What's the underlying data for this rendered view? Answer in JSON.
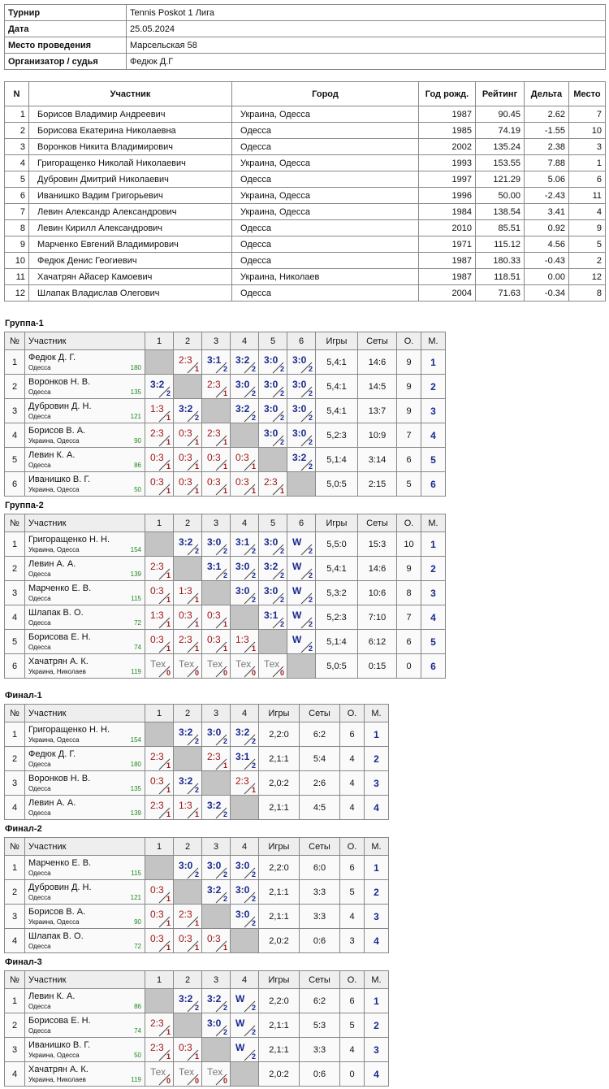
{
  "info": {
    "rows": [
      [
        "Турнир",
        "Tennis Poskot 1 Лига"
      ],
      [
        "Дата",
        "25.05.2024"
      ],
      [
        "Место проведения",
        "Марсельская 58"
      ],
      [
        "Организатор / судья",
        "Федюк Д.Г"
      ]
    ]
  },
  "participants": {
    "headers": [
      "N",
      "Участник",
      "Город",
      "Год рожд.",
      "Рейтинг",
      "Дельта",
      "Место"
    ],
    "rows": [
      [
        "1",
        "Борисов Владимир Андреевич",
        "Украина, Одесса",
        "1987",
        "90.45",
        "2.62",
        "7"
      ],
      [
        "2",
        "Борисова Екатерина Николаевна",
        "Одесса",
        "1985",
        "74.19",
        "-1.55",
        "10"
      ],
      [
        "3",
        "Воронков Никита Владимирович",
        "Одесса",
        "2002",
        "135.24",
        "2.38",
        "3"
      ],
      [
        "4",
        "Григоращенко Николай Николаевич",
        "Украина, Одесса",
        "1993",
        "153.55",
        "7.88",
        "1"
      ],
      [
        "5",
        "Дубровин Дмитрий Николаевич",
        "Одесса",
        "1997",
        "121.29",
        "5.06",
        "6"
      ],
      [
        "6",
        "Иванишко Вадим Григорьевич",
        "Украина, Одесса",
        "1996",
        "50.00",
        "-2.43",
        "11"
      ],
      [
        "7",
        "Левин Александр Александрович",
        "Украина, Одесса",
        "1984",
        "138.54",
        "3.41",
        "4"
      ],
      [
        "8",
        "Левин Кирилл Александрович",
        "Одесса",
        "2010",
        "85.51",
        "0.92",
        "9"
      ],
      [
        "9",
        "Марченко Евгений Владимирович",
        "Одесса",
        "1971",
        "115.12",
        "4.56",
        "5"
      ],
      [
        "10",
        "Федюк Денис Геогиевич",
        "Одесса",
        "1987",
        "180.33",
        "-0.43",
        "2"
      ],
      [
        "11",
        "Хачатрян Айасер Камоевич",
        "Украина, Николаев",
        "1987",
        "118.51",
        "0.00",
        "12"
      ],
      [
        "12",
        "Шлапак Владислав Олегович",
        "Одесса",
        "2004",
        "71.63",
        "-0.34",
        "8"
      ]
    ]
  },
  "groups": [
    {
      "title": "Группа-1",
      "headers": [
        "№",
        "Участник",
        "1",
        "2",
        "3",
        "4",
        "5",
        "6",
        "Игры",
        "Сеты",
        "О.",
        "М."
      ],
      "rows": [
        {
          "n": "1",
          "name": "Федюк Д. Г.",
          "city": "Одесса",
          "rating": "180",
          "games": [
            null,
            {
              "score": "2:3",
              "pts": "1"
            },
            {
              "score": "3:1",
              "pts": "2"
            },
            {
              "score": "3:2",
              "pts": "2"
            },
            {
              "score": "3:0",
              "pts": "2"
            },
            {
              "score": "3:0",
              "pts": "2"
            }
          ],
          "games_total": "5,4:1",
          "sets": "14:6",
          "points": "9",
          "place": "1"
        },
        {
          "n": "2",
          "name": "Воронков Н. В.",
          "city": "Одесса",
          "rating": "135",
          "games": [
            {
              "score": "3:2",
              "pts": "2"
            },
            null,
            {
              "score": "2:3",
              "pts": "1"
            },
            {
              "score": "3:0",
              "pts": "2"
            },
            {
              "score": "3:0",
              "pts": "2"
            },
            {
              "score": "3:0",
              "pts": "2"
            }
          ],
          "games_total": "5,4:1",
          "sets": "14:5",
          "points": "9",
          "place": "2"
        },
        {
          "n": "3",
          "name": "Дубровин Д. Н.",
          "city": "Одесса",
          "rating": "121",
          "games": [
            {
              "score": "1:3",
              "pts": "1"
            },
            {
              "score": "3:2",
              "pts": "2"
            },
            null,
            {
              "score": "3:2",
              "pts": "2"
            },
            {
              "score": "3:0",
              "pts": "2"
            },
            {
              "score": "3:0",
              "pts": "2"
            }
          ],
          "games_total": "5,4:1",
          "sets": "13:7",
          "points": "9",
          "place": "3"
        },
        {
          "n": "4",
          "name": "Борисов В. А.",
          "city": "Украина, Одесса",
          "rating": "90",
          "games": [
            {
              "score": "2:3",
              "pts": "1"
            },
            {
              "score": "0:3",
              "pts": "1"
            },
            {
              "score": "2:3",
              "pts": "1"
            },
            null,
            {
              "score": "3:0",
              "pts": "2"
            },
            {
              "score": "3:0",
              "pts": "2"
            }
          ],
          "games_total": "5,2:3",
          "sets": "10:9",
          "points": "7",
          "place": "4"
        },
        {
          "n": "5",
          "name": "Левин К. А.",
          "city": "Одесса",
          "rating": "86",
          "games": [
            {
              "score": "0:3",
              "pts": "1"
            },
            {
              "score": "0:3",
              "pts": "1"
            },
            {
              "score": "0:3",
              "pts": "1"
            },
            {
              "score": "0:3",
              "pts": "1"
            },
            null,
            {
              "score": "3:2",
              "pts": "2"
            }
          ],
          "games_total": "5,1:4",
          "sets": "3:14",
          "points": "6",
          "place": "5"
        },
        {
          "n": "6",
          "name": "Иванишко В. Г.",
          "city": "Украина, Одесса",
          "rating": "50",
          "games": [
            {
              "score": "0:3",
              "pts": "1"
            },
            {
              "score": "0:3",
              "pts": "1"
            },
            {
              "score": "0:3",
              "pts": "1"
            },
            {
              "score": "0:3",
              "pts": "1"
            },
            {
              "score": "2:3",
              "pts": "1"
            },
            null
          ],
          "games_total": "5,0:5",
          "sets": "2:15",
          "points": "5",
          "place": "6"
        }
      ]
    },
    {
      "title": "Группа-2",
      "headers": [
        "№",
        "Участник",
        "1",
        "2",
        "3",
        "4",
        "5",
        "6",
        "Игры",
        "Сеты",
        "О.",
        "М."
      ],
      "rows": [
        {
          "n": "1",
          "name": "Григоращенко Н. Н.",
          "city": "Украина, Одесса",
          "rating": "154",
          "games": [
            null,
            {
              "score": "3:2",
              "pts": "2"
            },
            {
              "score": "3:0",
              "pts": "2"
            },
            {
              "score": "3:1",
              "pts": "2"
            },
            {
              "score": "3:0",
              "pts": "2"
            },
            {
              "score": "W",
              "pts": "2"
            }
          ],
          "games_total": "5,5:0",
          "sets": "15:3",
          "points": "10",
          "place": "1"
        },
        {
          "n": "2",
          "name": "Левин А. А.",
          "city": "Одесса",
          "rating": "139",
          "games": [
            {
              "score": "2:3",
              "pts": "1"
            },
            null,
            {
              "score": "3:1",
              "pts": "2"
            },
            {
              "score": "3:0",
              "pts": "2"
            },
            {
              "score": "3:2",
              "pts": "2"
            },
            {
              "score": "W",
              "pts": "2"
            }
          ],
          "games_total": "5,4:1",
          "sets": "14:6",
          "points": "9",
          "place": "2"
        },
        {
          "n": "3",
          "name": "Марченко Е. В.",
          "city": "Одесса",
          "rating": "115",
          "games": [
            {
              "score": "0:3",
              "pts": "1"
            },
            {
              "score": "1:3",
              "pts": "1"
            },
            null,
            {
              "score": "3:0",
              "pts": "2"
            },
            {
              "score": "3:0",
              "pts": "2"
            },
            {
              "score": "W",
              "pts": "2"
            }
          ],
          "games_total": "5,3:2",
          "sets": "10:6",
          "points": "8",
          "place": "3"
        },
        {
          "n": "4",
          "name": "Шлапак В. О.",
          "city": "Одесса",
          "rating": "72",
          "games": [
            {
              "score": "1:3",
              "pts": "1"
            },
            {
              "score": "0:3",
              "pts": "1"
            },
            {
              "score": "0:3",
              "pts": "1"
            },
            null,
            {
              "score": "3:1",
              "pts": "2"
            },
            {
              "score": "W",
              "pts": "2"
            }
          ],
          "games_total": "5,2:3",
          "sets": "7:10",
          "points": "7",
          "place": "4"
        },
        {
          "n": "5",
          "name": "Борисова Е. Н.",
          "city": "Одесса",
          "rating": "74",
          "games": [
            {
              "score": "0:3",
              "pts": "1"
            },
            {
              "score": "2:3",
              "pts": "1"
            },
            {
              "score": "0:3",
              "pts": "1"
            },
            {
              "score": "1:3",
              "pts": "1"
            },
            null,
            {
              "score": "W",
              "pts": "2"
            }
          ],
          "games_total": "5,1:4",
          "sets": "6:12",
          "points": "6",
          "place": "5"
        },
        {
          "n": "6",
          "name": "Хачатрян А. К.",
          "city": "Украина, Николаев",
          "rating": "119",
          "games": [
            {
              "score": "Тех",
              "pts": "0"
            },
            {
              "score": "Тех",
              "pts": "0"
            },
            {
              "score": "Тех",
              "pts": "0"
            },
            {
              "score": "Тех",
              "pts": "0"
            },
            {
              "score": "Тех",
              "pts": "0"
            },
            null
          ],
          "games_total": "5,0:5",
          "sets": "0:15",
          "points": "0",
          "place": "6"
        }
      ]
    },
    {
      "title": "Финал-1",
      "headers": [
        "№",
        "Участник",
        "1",
        "2",
        "3",
        "4",
        "Игры",
        "Сеты",
        "О.",
        "М."
      ],
      "rows": [
        {
          "n": "1",
          "name": "Григоращенко Н. Н.",
          "city": "Украина, Одесса",
          "rating": "154",
          "games": [
            null,
            {
              "score": "3:2",
              "pts": "2"
            },
            {
              "score": "3:0",
              "pts": "2"
            },
            {
              "score": "3:2",
              "pts": "2"
            }
          ],
          "games_total": "2,2:0",
          "sets": "6:2",
          "points": "6",
          "place": "1"
        },
        {
          "n": "2",
          "name": "Федюк Д. Г.",
          "city": "Одесса",
          "rating": "180",
          "games": [
            {
              "score": "2:3",
              "pts": "1"
            },
            null,
            {
              "score": "2:3",
              "pts": "1"
            },
            {
              "score": "3:1",
              "pts": "2"
            }
          ],
          "games_total": "2,1:1",
          "sets": "5:4",
          "points": "4",
          "place": "2"
        },
        {
          "n": "3",
          "name": "Воронков Н. В.",
          "city": "Одесса",
          "rating": "135",
          "games": [
            {
              "score": "0:3",
              "pts": "1"
            },
            {
              "score": "3:2",
              "pts": "2"
            },
            null,
            {
              "score": "2:3",
              "pts": "1"
            }
          ],
          "games_total": "2,0:2",
          "sets": "2:6",
          "points": "4",
          "place": "3"
        },
        {
          "n": "4",
          "name": "Левин А. А.",
          "city": "Одесса",
          "rating": "139",
          "games": [
            {
              "score": "2:3",
              "pts": "1"
            },
            {
              "score": "1:3",
              "pts": "1"
            },
            {
              "score": "3:2",
              "pts": "2"
            },
            null
          ],
          "games_total": "2,1:1",
          "sets": "4:5",
          "points": "4",
          "place": "4"
        }
      ]
    },
    {
      "title": "Финал-2",
      "headers": [
        "№",
        "Участник",
        "1",
        "2",
        "3",
        "4",
        "Игры",
        "Сеты",
        "О.",
        "М."
      ],
      "rows": [
        {
          "n": "1",
          "name": "Марченко Е. В.",
          "city": "Одесса",
          "rating": "115",
          "games": [
            null,
            {
              "score": "3:0",
              "pts": "2"
            },
            {
              "score": "3:0",
              "pts": "2"
            },
            {
              "score": "3:0",
              "pts": "2"
            }
          ],
          "games_total": "2,2:0",
          "sets": "6:0",
          "points": "6",
          "place": "1"
        },
        {
          "n": "2",
          "name": "Дубровин Д. Н.",
          "city": "Одесса",
          "rating": "121",
          "games": [
            {
              "score": "0:3",
              "pts": "1"
            },
            null,
            {
              "score": "3:2",
              "pts": "2"
            },
            {
              "score": "3:0",
              "pts": "2"
            }
          ],
          "games_total": "2,1:1",
          "sets": "3:3",
          "points": "5",
          "place": "2"
        },
        {
          "n": "3",
          "name": "Борисов В. А.",
          "city": "Украина, Одесса",
          "rating": "90",
          "games": [
            {
              "score": "0:3",
              "pts": "1"
            },
            {
              "score": "2:3",
              "pts": "1"
            },
            null,
            {
              "score": "3:0",
              "pts": "2"
            }
          ],
          "games_total": "2,1:1",
          "sets": "3:3",
          "points": "4",
          "place": "3"
        },
        {
          "n": "4",
          "name": "Шлапак В. О.",
          "city": "Одесса",
          "rating": "72",
          "games": [
            {
              "score": "0:3",
              "pts": "1"
            },
            {
              "score": "0:3",
              "pts": "1"
            },
            {
              "score": "0:3",
              "pts": "1"
            },
            null
          ],
          "games_total": "2,0:2",
          "sets": "0:6",
          "points": "3",
          "place": "4"
        }
      ]
    },
    {
      "title": "Финал-3",
      "headers": [
        "№",
        "Участник",
        "1",
        "2",
        "3",
        "4",
        "Игры",
        "Сеты",
        "О.",
        "М."
      ],
      "rows": [
        {
          "n": "1",
          "name": "Левин К. А.",
          "city": "Одесса",
          "rating": "86",
          "games": [
            null,
            {
              "score": "3:2",
              "pts": "2"
            },
            {
              "score": "3:2",
              "pts": "2"
            },
            {
              "score": "W",
              "pts": "2"
            }
          ],
          "games_total": "2,2:0",
          "sets": "6:2",
          "points": "6",
          "place": "1"
        },
        {
          "n": "2",
          "name": "Борисова Е. Н.",
          "city": "Одесса",
          "rating": "74",
          "games": [
            {
              "score": "2:3",
              "pts": "1"
            },
            null,
            {
              "score": "3:0",
              "pts": "2"
            },
            {
              "score": "W",
              "pts": "2"
            }
          ],
          "games_total": "2,1:1",
          "sets": "5:3",
          "points": "5",
          "place": "2"
        },
        {
          "n": "3",
          "name": "Иванишко В. Г.",
          "city": "Украина, Одесса",
          "rating": "50",
          "games": [
            {
              "score": "2:3",
              "pts": "1"
            },
            {
              "score": "0:3",
              "pts": "1"
            },
            null,
            {
              "score": "W",
              "pts": "2"
            }
          ],
          "games_total": "2,1:1",
          "sets": "3:3",
          "points": "4",
          "place": "3"
        },
        {
          "n": "4",
          "name": "Хачатрян А. К.",
          "city": "Украина, Николаев",
          "rating": "119",
          "games": [
            {
              "score": "Тех",
              "pts": "0"
            },
            {
              "score": "Тех",
              "pts": "0"
            },
            {
              "score": "Тех",
              "pts": "0"
            },
            null
          ],
          "games_total": "2,0:2",
          "sets": "0:6",
          "points": "0",
          "place": "4"
        }
      ]
    }
  ]
}
